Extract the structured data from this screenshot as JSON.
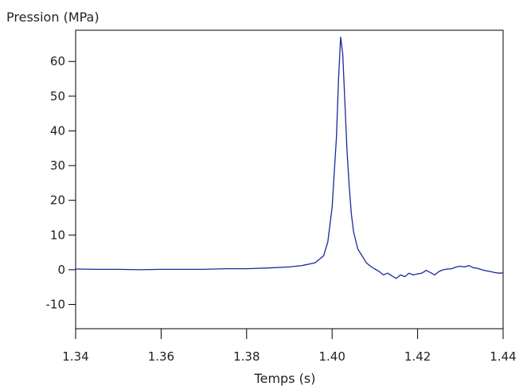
{
  "chart_data": {
    "type": "line",
    "title": "",
    "ylabel": "Pression (MPa)",
    "xlabel": "Temps (s)",
    "xlim": [
      1.34,
      1.44
    ],
    "ylim": [
      -17,
      69
    ],
    "x_ticks": [
      1.34,
      1.36,
      1.38,
      1.4,
      1.42,
      1.44
    ],
    "x_tick_labels": [
      "1.34",
      "1.36",
      "1.38",
      "1.40",
      "1.42",
      "1.44"
    ],
    "y_ticks": [
      -10,
      0,
      10,
      20,
      30,
      40,
      50,
      60
    ],
    "y_tick_labels": [
      "-10",
      "0",
      "10",
      "20",
      "30",
      "40",
      "50",
      "60"
    ],
    "grid": false,
    "colors": {
      "line": "#1a2a9a",
      "axis": "#000000",
      "text": "#222222"
    },
    "series": [
      {
        "x": [
          1.34,
          1.345,
          1.35,
          1.355,
          1.36,
          1.365,
          1.37,
          1.375,
          1.38,
          1.385,
          1.39,
          1.393,
          1.396,
          1.398,
          1.399,
          1.4,
          1.401,
          1.4015,
          1.402,
          1.4025,
          1.403,
          1.4035,
          1.404,
          1.4045,
          1.405,
          1.406,
          1.407,
          1.408,
          1.409,
          1.41,
          1.411,
          1.412,
          1.413,
          1.414,
          1.415,
          1.416,
          1.417,
          1.418,
          1.419,
          1.42,
          1.421,
          1.422,
          1.423,
          1.424,
          1.425,
          1.426,
          1.427,
          1.428,
          1.429,
          1.43,
          1.431,
          1.432,
          1.433,
          1.434,
          1.435,
          1.436,
          1.437,
          1.438,
          1.439,
          1.44
        ],
        "values": [
          0.2,
          0.1,
          0.1,
          0.0,
          0.1,
          0.1,
          0.1,
          0.3,
          0.3,
          0.5,
          0.8,
          1.2,
          2.0,
          4.0,
          8.0,
          18.0,
          38.0,
          55.0,
          67.0,
          62.0,
          48.0,
          34.0,
          24.0,
          16.0,
          11.0,
          6.0,
          4.0,
          2.0,
          1.0,
          0.2,
          -0.5,
          -1.5,
          -1.0,
          -1.8,
          -2.5,
          -1.5,
          -2.0,
          -1.0,
          -1.5,
          -1.2,
          -1.0,
          -0.2,
          -0.8,
          -1.5,
          -0.5,
          0.0,
          0.2,
          0.3,
          0.8,
          1.0,
          0.8,
          1.2,
          0.6,
          0.4,
          0.0,
          -0.3,
          -0.5,
          -0.8,
          -1.0,
          -0.9
        ]
      }
    ]
  }
}
